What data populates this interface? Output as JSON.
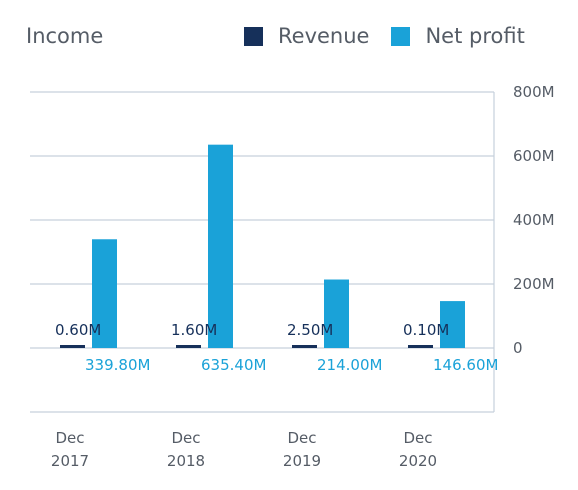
{
  "chart_data": {
    "type": "bar",
    "title": "Income",
    "categories": [
      {
        "line1": "Dec",
        "line2": "2017"
      },
      {
        "line1": "Dec",
        "line2": "2018"
      },
      {
        "line1": "Dec",
        "line2": "2019"
      },
      {
        "line1": "Dec",
        "line2": "2020"
      }
    ],
    "series": [
      {
        "name": "Revenue",
        "color": "#16305a",
        "values": [
          0.6,
          1.6,
          2.5,
          0.1
        ],
        "labels": [
          "0.60M",
          "1.60M",
          "2.50M",
          "0.10M"
        ]
      },
      {
        "name": "Net profit",
        "color": "#1aa2d8",
        "values": [
          339.8,
          635.4,
          214.0,
          146.6
        ],
        "labels": [
          "339.80M",
          "635.40M",
          "214.00M",
          "146.60M"
        ]
      }
    ],
    "yticks": [
      {
        "value": 800,
        "label": "800M"
      },
      {
        "value": 600,
        "label": "600M"
      },
      {
        "value": 400,
        "label": "400M"
      },
      {
        "value": 200,
        "label": "200M"
      },
      {
        "value": 0,
        "label": "0"
      }
    ],
    "ylim": [
      -200,
      800
    ],
    "ylabel": "",
    "xlabel": "",
    "grid": true,
    "legend": "top-right",
    "y_axis_side": "right"
  }
}
